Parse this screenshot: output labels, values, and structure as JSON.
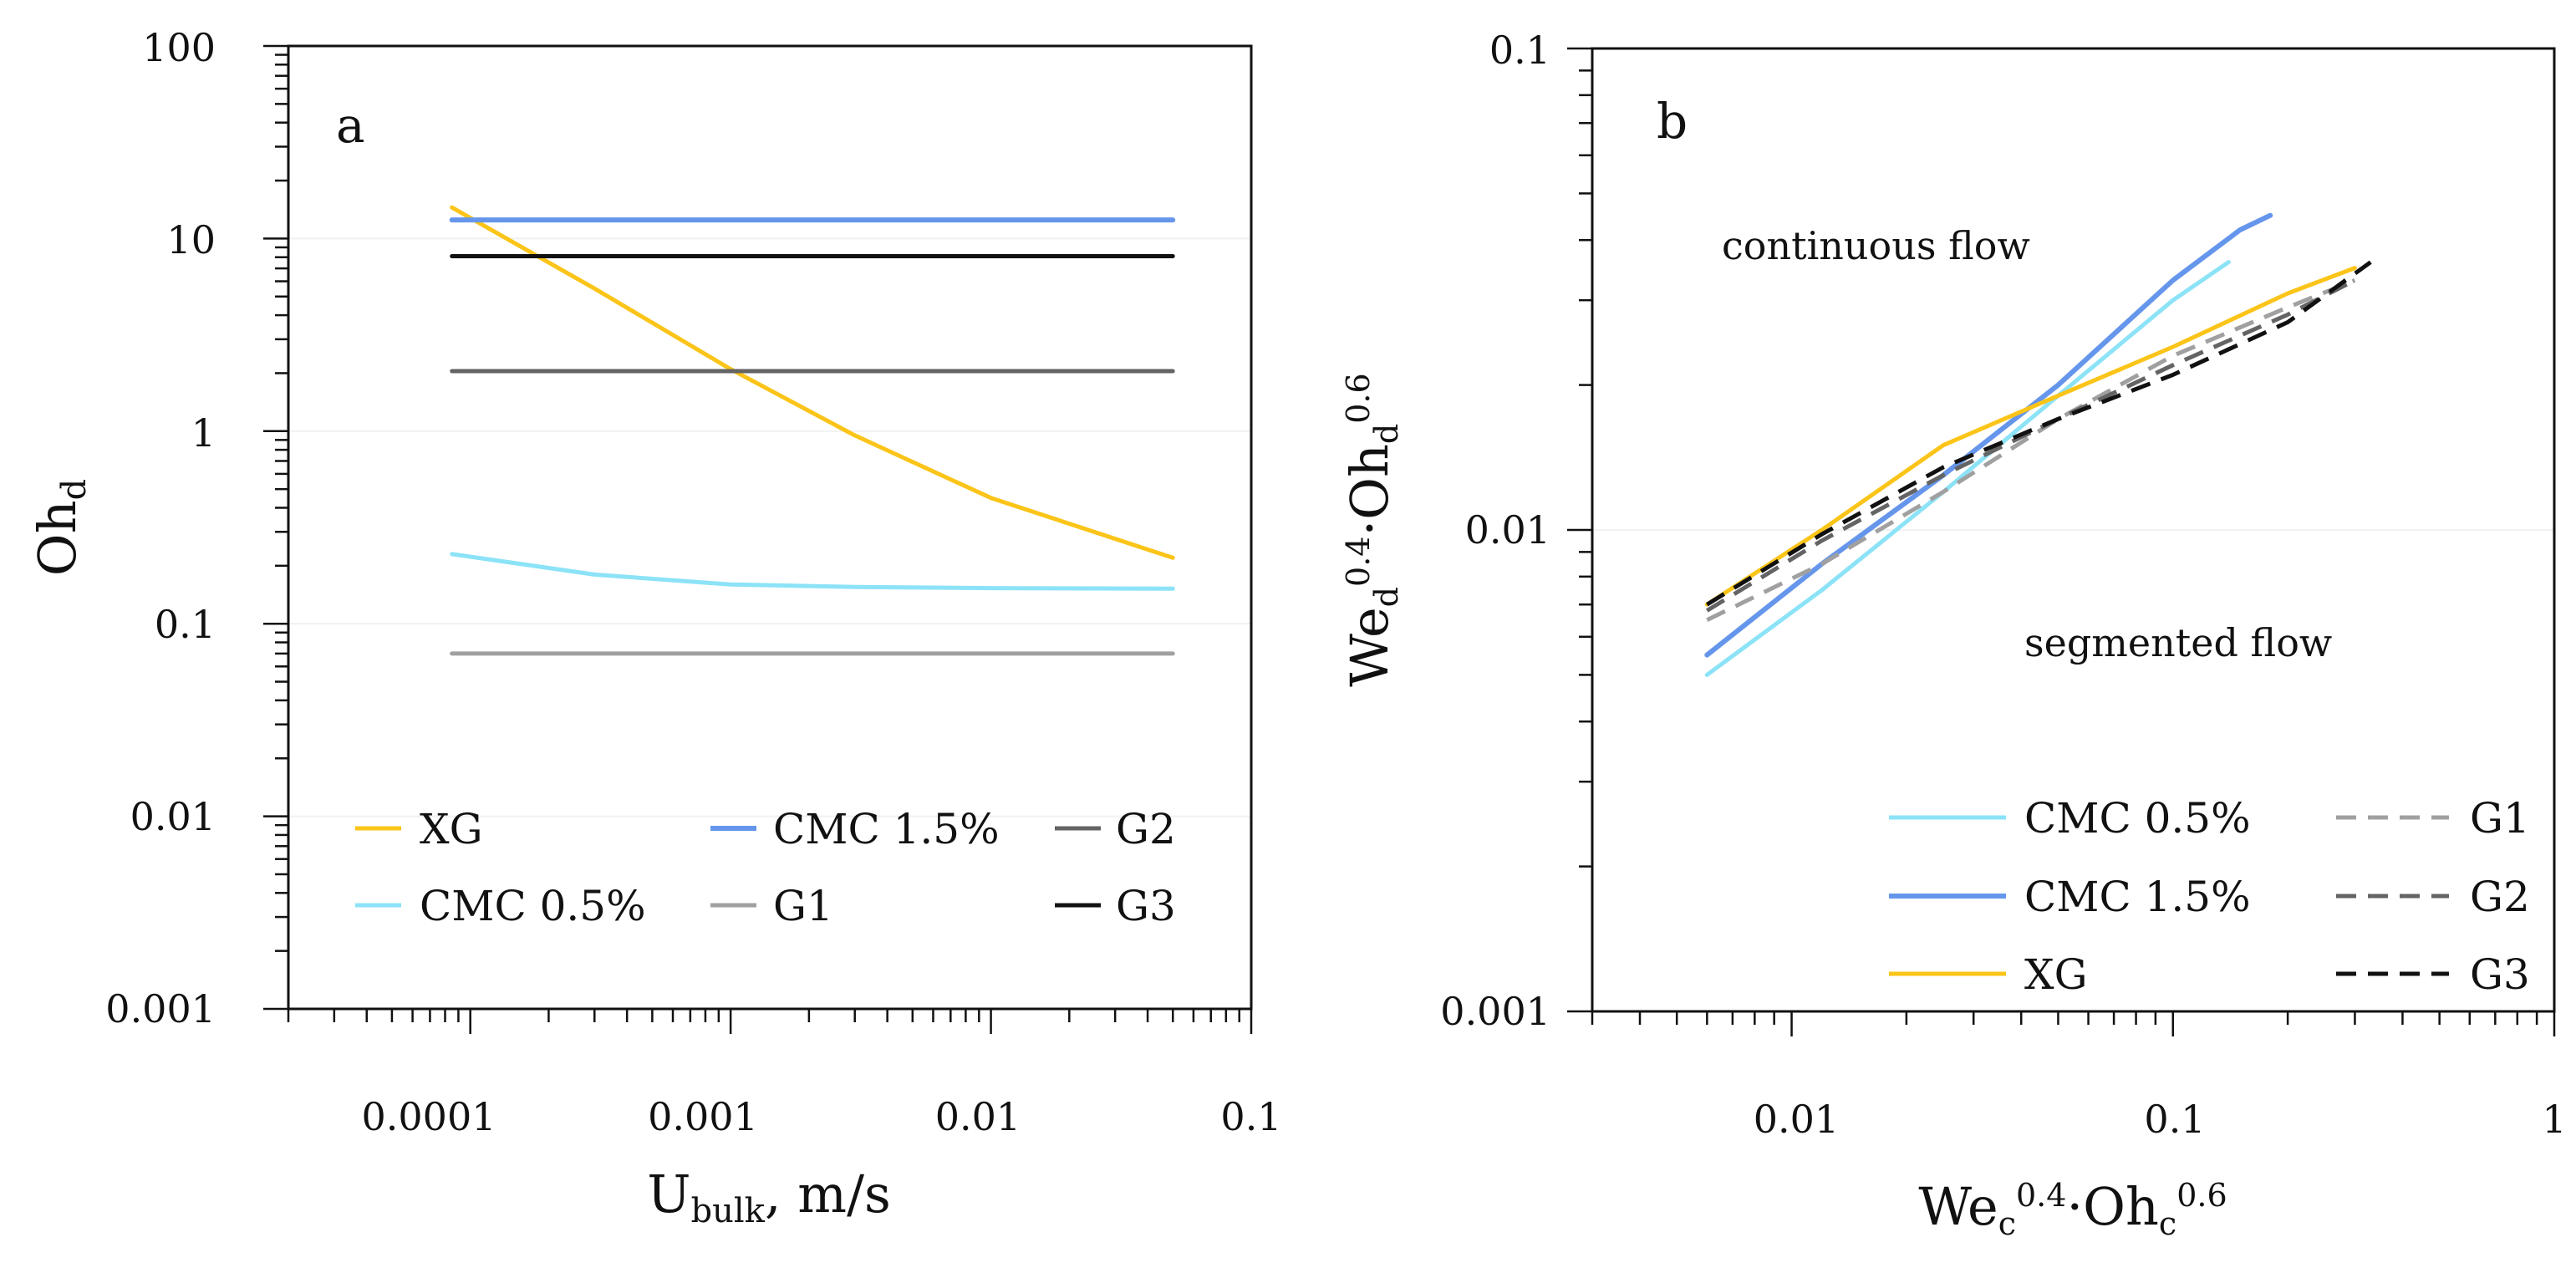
{
  "colors": {
    "XG": "#FBC418",
    "CMC 0.5%": "#8CE3F7",
    "CMC 1.5%": "#6596EC",
    "G1": "#A0A0A0",
    "G2": "#646464",
    "G3": "#111111"
  },
  "chart_data": [
    {
      "panel_label": "a",
      "type": "line",
      "x_scale": "log",
      "y_scale": "log",
      "xlim": [
        2e-05,
        0.1
      ],
      "ylim": [
        0.001,
        100
      ],
      "xlabel": {
        "main": "U",
        "sub": "bulk",
        "tail": ", m/s"
      },
      "ylabel": {
        "main": "Oh",
        "sub": "d"
      },
      "xticks": [
        "0.0001",
        "0.001",
        "0.01",
        "0.1"
      ],
      "yticks": [
        "0.001",
        "0.01",
        "0.1",
        "1",
        "10",
        "100"
      ],
      "legend_position": "bottom",
      "series": [
        {
          "name": "XG",
          "style": "solid",
          "x": [
            8.5e-05,
            0.0003,
            0.001,
            0.003,
            0.01,
            0.05
          ],
          "y": [
            14.5,
            5.5,
            2.1,
            0.95,
            0.45,
            0.22
          ]
        },
        {
          "name": "CMC 0.5%",
          "style": "solid",
          "x": [
            8.5e-05,
            0.0003,
            0.001,
            0.003,
            0.01,
            0.05
          ],
          "y": [
            0.23,
            0.18,
            0.16,
            0.155,
            0.153,
            0.152
          ]
        },
        {
          "name": "CMC 1.5%",
          "style": "solid",
          "x": [
            8.5e-05,
            0.05
          ],
          "y": [
            12.5,
            12.5
          ]
        },
        {
          "name": "G1",
          "style": "solid",
          "x": [
            8.5e-05,
            0.05
          ],
          "y": [
            0.07,
            0.07
          ]
        },
        {
          "name": "G2",
          "style": "solid",
          "x": [
            8.5e-05,
            0.05
          ],
          "y": [
            2.05,
            2.05
          ]
        },
        {
          "name": "G3",
          "style": "solid",
          "x": [
            8.5e-05,
            0.05
          ],
          "y": [
            8.1,
            8.1
          ]
        }
      ]
    },
    {
      "panel_label": "b",
      "type": "line",
      "x_scale": "log",
      "y_scale": "log",
      "xlim": [
        0.003,
        1
      ],
      "ylim": [
        0.001,
        0.1
      ],
      "xlabel": {
        "a": "We",
        "a_sub": "c",
        "a_sup": "0.4",
        "dot": "·",
        "b": "Oh",
        "b_sub": "c",
        "b_sup": "0.6"
      },
      "ylabel": {
        "a": "We",
        "a_sub": "d",
        "a_sup": "0.4",
        "dot": "·",
        "b": "Oh",
        "b_sub": "d",
        "b_sup": "0.6"
      },
      "xticks": [
        "0.01",
        "0.1",
        "1"
      ],
      "yticks": [
        "0.001",
        "0.01",
        "0.1"
      ],
      "annotations": [
        "continuous flow",
        "segmented flow"
      ],
      "legend_position": "bottom-right",
      "series": [
        {
          "name": "CMC 0.5%",
          "style": "solid",
          "x": [
            0.006,
            0.012,
            0.025,
            0.05,
            0.1,
            0.14
          ],
          "y": [
            0.005,
            0.0075,
            0.012,
            0.019,
            0.03,
            0.036
          ]
        },
        {
          "name": "CMC 1.5%",
          "style": "solid",
          "x": [
            0.006,
            0.012,
            0.025,
            0.05,
            0.1,
            0.15,
            0.18
          ],
          "y": [
            0.0055,
            0.0085,
            0.013,
            0.02,
            0.033,
            0.042,
            0.045
          ]
        },
        {
          "name": "XG",
          "style": "solid",
          "x": [
            0.006,
            0.012,
            0.025,
            0.05,
            0.1,
            0.2,
            0.3
          ],
          "y": [
            0.007,
            0.01,
            0.015,
            0.019,
            0.024,
            0.031,
            0.035
          ]
        },
        {
          "name": "G1",
          "style": "dashed",
          "x": [
            0.006,
            0.012,
            0.025,
            0.05,
            0.1,
            0.2,
            0.3
          ],
          "y": [
            0.0065,
            0.0085,
            0.012,
            0.017,
            0.023,
            0.029,
            0.033
          ]
        },
        {
          "name": "G2",
          "style": "dashed",
          "x": [
            0.006,
            0.012,
            0.025,
            0.05,
            0.1,
            0.2,
            0.3
          ],
          "y": [
            0.0068,
            0.0095,
            0.013,
            0.017,
            0.022,
            0.028,
            0.033
          ]
        },
        {
          "name": "G3",
          "style": "dashed",
          "x": [
            0.006,
            0.012,
            0.025,
            0.05,
            0.1,
            0.2,
            0.33
          ],
          "y": [
            0.007,
            0.0098,
            0.0135,
            0.017,
            0.021,
            0.027,
            0.036
          ]
        }
      ]
    }
  ]
}
